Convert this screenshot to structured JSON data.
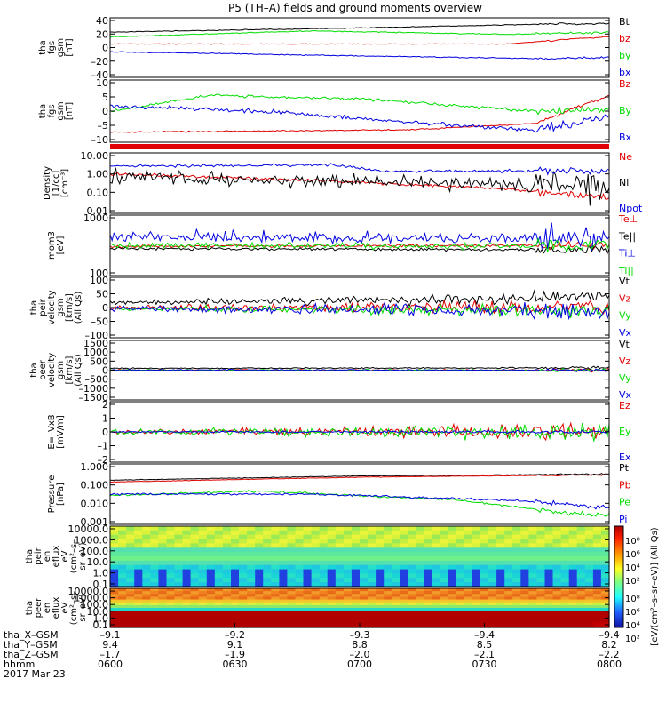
{
  "title": "P5 (TH–A) fields and ground moments overview",
  "colors": {
    "black": "#000000",
    "red": "#e00000",
    "green": "#00dd00",
    "blue": "#0000e0"
  },
  "date": "2017 Mar 23",
  "footer": {
    "row_labels": [
      "tha_X–GSM",
      "tha_Y–GSM",
      "tha_Z–GSM",
      "hhmm"
    ],
    "columns": [
      [
        "–9.1",
        "9.4",
        "–1.7",
        "0600"
      ],
      [
        "–9.2",
        "9.1",
        "–1.9",
        "0630"
      ],
      [
        "–9.3",
        "8.8",
        "–2.0",
        "0700"
      ],
      [
        "–9.4",
        "8.5",
        "–2.1",
        "0730"
      ],
      [
        "–9.4",
        "8.2",
        "–2.2",
        "0800"
      ]
    ]
  },
  "colorbar": {
    "title": "[eV/(cm²–s–sr–eV)] (All Qs)",
    "upper_ticks": [
      "10⁸",
      "10⁶",
      "10⁴",
      "10²"
    ],
    "lower_ticks": [
      "10⁸",
      "10⁶",
      "10⁴",
      "10²"
    ]
  },
  "chart_data": [
    {
      "type": "line",
      "ylabel": [
        "tha",
        "fgs",
        "gsm",
        "[nT]"
      ],
      "yticks": [
        "40",
        "20",
        "0",
        "–20",
        "–40"
      ],
      "ylim": [
        -40,
        40
      ],
      "series": [
        {
          "name": "Bt",
          "color": "black"
        },
        {
          "name": "bz",
          "color": "red"
        },
        {
          "name": "by",
          "color": "green"
        },
        {
          "name": "bx",
          "color": "blue"
        }
      ]
    },
    {
      "type": "line",
      "ylabel": [
        "tha",
        "fgs",
        "gsm",
        "[nT]"
      ],
      "yticks": [
        "10",
        "5",
        "0",
        "–5",
        "–10"
      ],
      "ylim": [
        -13,
        13
      ],
      "series": [
        {
          "name": "Bz",
          "color": "red"
        },
        {
          "name": "By",
          "color": "green"
        },
        {
          "name": "Bx",
          "color": "blue"
        }
      ]
    },
    {
      "type": "line",
      "ylabel": [
        "Density",
        "[1/cc]",
        "[cm⁻³]"
      ],
      "yticks": [
        "10.00",
        "1.00",
        "0.10",
        "0.01"
      ],
      "scale": "log",
      "series": [
        {
          "name": "Ne",
          "color": "red"
        },
        {
          "name": "Ni",
          "color": "black"
        },
        {
          "name": "Npot",
          "color": "blue"
        }
      ]
    },
    {
      "type": "line",
      "ylabel": [
        "mom3",
        "[eV]"
      ],
      "yticks": [
        "1000",
        "100"
      ],
      "scale": "log",
      "series": [
        {
          "name": "Te⊥",
          "color": "red"
        },
        {
          "name": "Te||",
          "color": "black"
        },
        {
          "name": "Ti⊥",
          "color": "blue"
        },
        {
          "name": "Ti||",
          "color": "green"
        }
      ]
    },
    {
      "type": "line",
      "ylabel": [
        "tha",
        "peir",
        "velocity",
        "gsm",
        "[km/s]",
        "(All Qs)"
      ],
      "yticks": [
        "100",
        "50",
        "0",
        "–50",
        "–100"
      ],
      "ylim": [
        -100,
        100
      ],
      "series": [
        {
          "name": "Vt",
          "color": "black"
        },
        {
          "name": "Vz",
          "color": "red"
        },
        {
          "name": "Vy",
          "color": "green"
        },
        {
          "name": "Vx",
          "color": "blue"
        }
      ]
    },
    {
      "type": "line",
      "ylabel": [
        "tha",
        "peer",
        "velocity",
        "gsm",
        "[km/s]",
        "(All Qs)"
      ],
      "yticks": [
        "1500",
        "1000",
        "500",
        "0",
        "–500",
        "–1000",
        "–1500"
      ],
      "ylim": [
        -1500,
        1500
      ],
      "series": [
        {
          "name": "Vt",
          "color": "black"
        },
        {
          "name": "Vz",
          "color": "red"
        },
        {
          "name": "Vy",
          "color": "green"
        },
        {
          "name": "Vx",
          "color": "blue"
        }
      ]
    },
    {
      "type": "line",
      "ylabel": [
        "E=–VxB",
        "[mV/m]"
      ],
      "yticks": [
        "2",
        "1",
        "0",
        "–1",
        "–2"
      ],
      "ylim": [
        -2.5,
        2.5
      ],
      "series": [
        {
          "name": "Ez",
          "color": "red"
        },
        {
          "name": "Ey",
          "color": "green"
        },
        {
          "name": "Ex",
          "color": "blue"
        }
      ]
    },
    {
      "type": "line",
      "ylabel": [
        "Pressure",
        "[nPa]"
      ],
      "yticks": [
        "1.000",
        "0.100",
        "0.010",
        "0.001"
      ],
      "scale": "log",
      "series": [
        {
          "name": "Pt",
          "color": "black"
        },
        {
          "name": "Pb",
          "color": "red"
        },
        {
          "name": "Pe",
          "color": "green"
        },
        {
          "name": "Pi",
          "color": "blue"
        }
      ]
    },
    {
      "type": "heatmap",
      "ylabel": [
        "tha",
        "peir",
        "en",
        "eflux",
        "eV",
        "(cm²–s–",
        "sr–eV)"
      ],
      "yticks": [
        "10000.0",
        "1000.0",
        "100.0",
        "10.0",
        "1.0",
        "0.1"
      ],
      "scale": "log"
    },
    {
      "type": "heatmap",
      "ylabel": [
        "tha",
        "peer",
        "en",
        "eflux",
        "eV",
        "(cm²–s–",
        "sr–eV)"
      ],
      "yticks": [
        "10000.0",
        "1000.0",
        "100.0",
        "10.0",
        "1.0",
        "0.1"
      ],
      "scale": "log"
    }
  ]
}
